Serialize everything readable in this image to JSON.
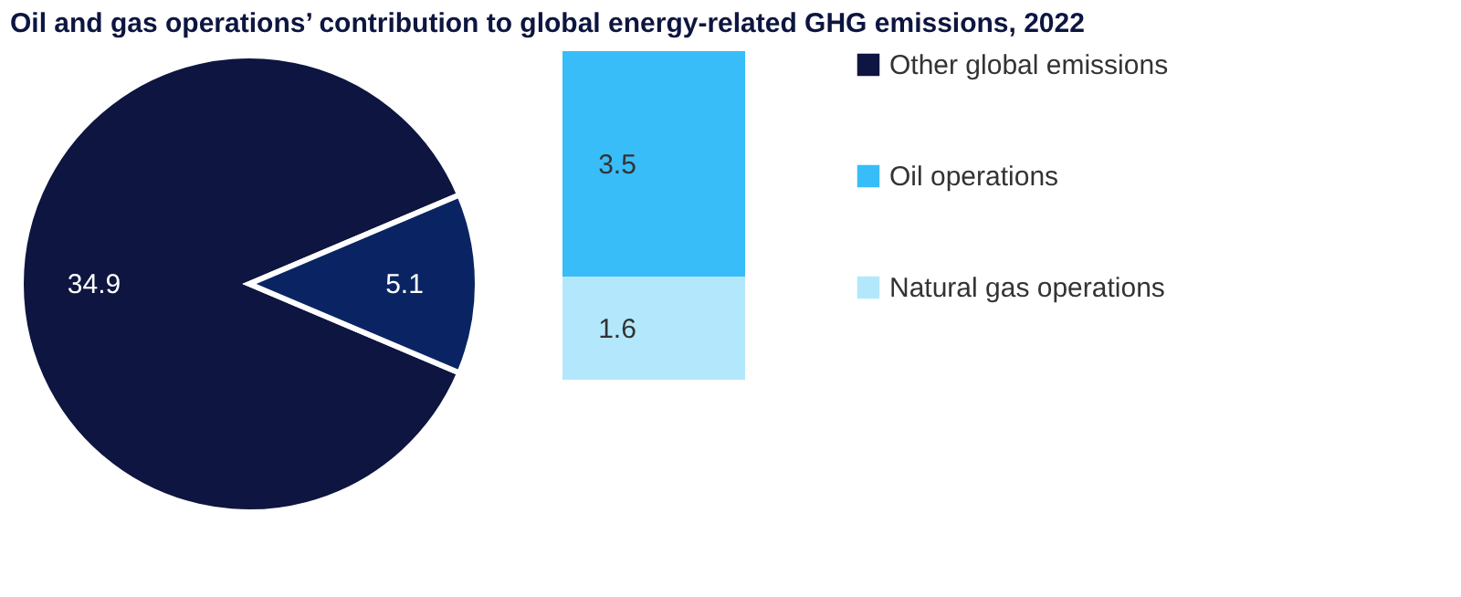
{
  "chart_data": [
    {
      "type": "pie",
      "title": "Oil and gas operations’ contribution to global energy-related GHG emissions, 2022",
      "categories": [
        "Other global emissions",
        null
      ],
      "values": [
        34.9,
        5.1
      ],
      "colors": [
        "#0d1540",
        "#0a2463"
      ],
      "data_labels": true
    },
    {
      "type": "bar",
      "stacked": true,
      "categories": [
        null
      ],
      "data_labels": true,
      "legend": "right",
      "series": [
        {
          "name": "Natural gas operations",
          "color": "#b3e8fc",
          "values": [
            1.6
          ]
        },
        {
          "name": "Oil operations",
          "color": "#38bdf8",
          "values": [
            3.5
          ]
        }
      ]
    }
  ]
}
